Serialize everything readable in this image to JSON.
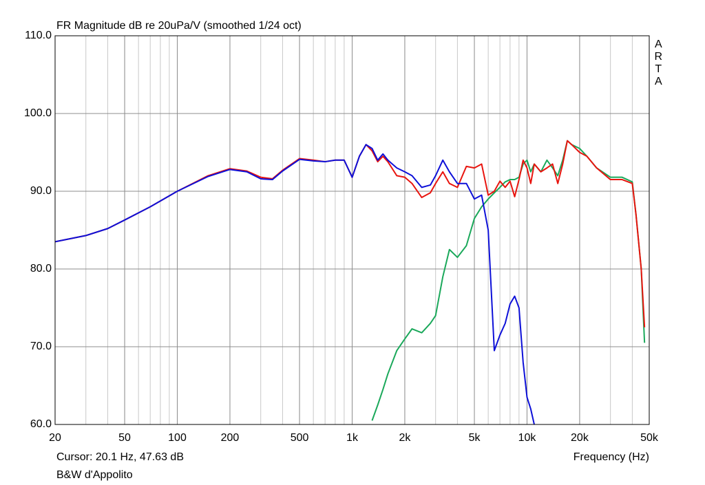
{
  "chart_data": {
    "type": "line",
    "title": "FR Magnitude dB re 20uPa/V (smoothed 1/24 oct)",
    "watermark": "ARTA",
    "x_label": "Frequency (Hz)",
    "cursor": "Cursor: 20.1 Hz, 47.63 dB",
    "caption": "B&W d'Appolito",
    "x_scale": "log",
    "grid": true,
    "minor_grid": true,
    "xlim": [
      20,
      50000
    ],
    "ylim": [
      60,
      110
    ],
    "xticks": [
      20,
      50,
      100,
      200,
      500,
      {
        "value": 1000,
        "label": "1k"
      },
      {
        "value": 2000,
        "label": "2k"
      },
      {
        "value": 5000,
        "label": "5k"
      },
      {
        "value": 10000,
        "label": "10k"
      },
      {
        "value": 20000,
        "label": "20k"
      },
      {
        "value": 50000,
        "label": "50k"
      }
    ],
    "yticks": [
      {
        "value": 60,
        "label": "60.0"
      },
      {
        "value": 70,
        "label": "70.0"
      },
      {
        "value": 80,
        "label": "80.0"
      },
      {
        "value": 90,
        "label": "90.0"
      },
      {
        "value": 100,
        "label": "100.0"
      },
      {
        "value": 110,
        "label": "110.0"
      }
    ],
    "x": [
      20,
      30,
      40,
      50,
      70,
      100,
      150,
      200,
      250,
      300,
      350,
      400,
      500,
      600,
      700,
      800,
      900,
      1000,
      1100,
      1200,
      1300,
      1400,
      1500,
      1600,
      1800,
      2000,
      2200,
      2500,
      2800,
      3000,
      3300,
      3600,
      4000,
      4500,
      5000,
      5500,
      6000,
      6500,
      7000,
      7500,
      8000,
      8500,
      9000,
      9500,
      10000,
      10500,
      11000,
      12000,
      13000,
      14000,
      15000,
      16000,
      17000,
      18000,
      20000,
      22000,
      25000,
      30000,
      35000,
      40000,
      42000,
      45000,
      47000
    ],
    "series": [
      {
        "color": "#1aa85a",
        "values": [
          null,
          null,
          null,
          null,
          null,
          null,
          null,
          null,
          null,
          null,
          null,
          null,
          null,
          null,
          null,
          null,
          null,
          null,
          null,
          null,
          60.5,
          62.5,
          64.5,
          66.5,
          69.5,
          71.0,
          72.3,
          71.8,
          73.0,
          74.0,
          79.0,
          82.5,
          81.5,
          83.0,
          86.5,
          88.0,
          89.0,
          89.8,
          90.5,
          91.2,
          91.5,
          91.5,
          91.8,
          93.5,
          94.0,
          92.5,
          93.5,
          92.5,
          94.0,
          93.0,
          92.0,
          94.0,
          96.5,
          96.0,
          95.5,
          94.5,
          93.0,
          91.8,
          91.8,
          91.2,
          87.0,
          80.0,
          70.5
        ]
      },
      {
        "color": "#e8140e",
        "values": [
          83.5,
          84.3,
          85.2,
          86.3,
          88.0,
          90.0,
          92.0,
          92.9,
          92.6,
          91.8,
          91.6,
          92.7,
          94.2,
          94.0,
          93.8,
          94.0,
          94.0,
          91.8,
          94.5,
          96.0,
          95.2,
          93.8,
          94.5,
          93.8,
          92.0,
          91.8,
          91.0,
          89.2,
          89.8,
          91.0,
          92.5,
          91.0,
          90.5,
          93.2,
          93.0,
          93.5,
          89.5,
          90.0,
          91.3,
          90.5,
          91.3,
          89.3,
          91.5,
          94.0,
          93.0,
          91.0,
          93.5,
          92.5,
          93.0,
          93.5,
          91.0,
          93.5,
          96.5,
          96.0,
          95.0,
          94.5,
          93.0,
          91.5,
          91.5,
          91.0,
          87.0,
          80.0,
          72.5
        ]
      },
      {
        "color": "#0d10d8",
        "values": [
          83.5,
          84.3,
          85.2,
          86.3,
          88.0,
          90.0,
          91.9,
          92.8,
          92.5,
          91.6,
          91.5,
          92.6,
          94.1,
          93.9,
          93.8,
          94.0,
          94.0,
          91.8,
          94.5,
          96.0,
          95.5,
          94.0,
          94.8,
          94.0,
          93.0,
          92.5,
          92.0,
          90.5,
          90.8,
          92.0,
          94.0,
          92.5,
          91.0,
          91.0,
          89.0,
          89.5,
          85.0,
          69.5,
          71.5,
          73.0,
          75.5,
          76.5,
          75.0,
          68.0,
          63.5,
          62.0,
          60.0,
          null,
          null,
          null,
          null,
          null,
          null,
          null,
          null,
          null,
          null,
          null,
          null,
          null,
          null,
          null,
          null
        ]
      }
    ]
  }
}
